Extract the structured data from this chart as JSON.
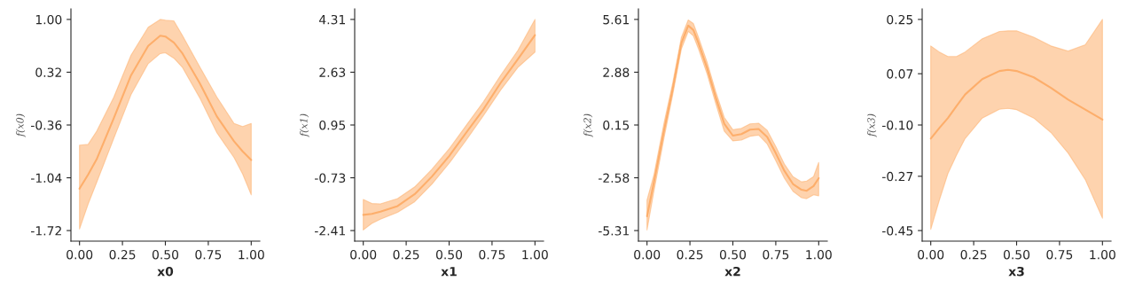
{
  "chart_data": [
    {
      "type": "line",
      "xlabel": "x0",
      "ylabel": "f(x0)",
      "grid": false,
      "x": [
        0,
        0.05,
        0.1,
        0.2,
        0.3,
        0.4,
        0.47,
        0.5,
        0.55,
        0.6,
        0.7,
        0.8,
        0.9,
        0.95,
        1.0
      ],
      "series": [
        {
          "color": "#fdae6b",
          "values": [
            -1.18,
            -1.0,
            -0.8,
            -0.27,
            0.28,
            0.66,
            0.79,
            0.78,
            0.7,
            0.56,
            0.18,
            -0.25,
            -0.57,
            -0.7,
            -0.81
          ],
          "lower": [
            -1.7,
            -1.38,
            -1.1,
            -0.53,
            0.03,
            0.43,
            0.56,
            0.57,
            0.5,
            0.38,
            -0.01,
            -0.46,
            -0.78,
            -0.99,
            -1.26
          ],
          "upper": [
            -0.62,
            -0.61,
            -0.44,
            0.0,
            0.54,
            0.9,
            1.0,
            0.99,
            0.98,
            0.79,
            0.39,
            0.0,
            -0.34,
            -0.38,
            -0.34
          ]
        }
      ],
      "xlim": [
        -0.05,
        1.05
      ],
      "ylim": [
        -1.856,
        1.136
      ],
      "xticks": [
        {
          "value": 0,
          "label": "0.00"
        },
        {
          "value": 0.25,
          "label": "0.25"
        },
        {
          "value": 0.5,
          "label": "0.50"
        },
        {
          "value": 0.75,
          "label": "0.75"
        },
        {
          "value": 1.0,
          "label": "1.00"
        }
      ],
      "yticks": [
        {
          "value": -1.72,
          "label": "-1.72"
        },
        {
          "value": -1.04,
          "label": "-1.04"
        },
        {
          "value": -0.36,
          "label": "-0.36"
        },
        {
          "value": 0.32,
          "label": "0.32"
        },
        {
          "value": 1.0,
          "label": "1.00"
        }
      ]
    },
    {
      "type": "line",
      "xlabel": "x1",
      "ylabel": "f(x1)",
      "grid": false,
      "x": [
        0,
        0.05,
        0.1,
        0.2,
        0.3,
        0.4,
        0.5,
        0.6,
        0.7,
        0.8,
        0.9,
        1.0
      ],
      "series": [
        {
          "color": "#fdae6b",
          "values": [
            -1.91,
            -1.88,
            -1.81,
            -1.63,
            -1.25,
            -0.69,
            -0.04,
            0.71,
            1.45,
            2.29,
            3.04,
            3.81
          ],
          "lower": [
            -2.39,
            -2.18,
            -2.05,
            -1.83,
            -1.49,
            -0.93,
            -0.27,
            0.47,
            1.25,
            2.06,
            2.78,
            3.27
          ],
          "upper": [
            -1.42,
            -1.55,
            -1.56,
            -1.39,
            -1.02,
            -0.46,
            0.19,
            0.94,
            1.69,
            2.53,
            3.32,
            4.31
          ]
        }
      ],
      "xlim": [
        -0.05,
        1.05
      ],
      "ylim": [
        -2.746,
        4.646
      ],
      "xticks": [
        {
          "value": 0,
          "label": "0.00"
        },
        {
          "value": 0.25,
          "label": "0.25"
        },
        {
          "value": 0.5,
          "label": "0.50"
        },
        {
          "value": 0.75,
          "label": "0.75"
        },
        {
          "value": 1.0,
          "label": "1.00"
        }
      ],
      "yticks": [
        {
          "value": -2.41,
          "label": "-2.41"
        },
        {
          "value": -0.73,
          "label": "-0.73"
        },
        {
          "value": 0.95,
          "label": "0.95"
        },
        {
          "value": 2.63,
          "label": "2.63"
        },
        {
          "value": 4.31,
          "label": "4.31"
        }
      ]
    },
    {
      "type": "line",
      "xlabel": "x2",
      "ylabel": "f(x2)",
      "grid": false,
      "x": [
        0,
        0.04,
        0.1,
        0.15,
        0.2,
        0.24,
        0.27,
        0.3,
        0.35,
        0.4,
        0.45,
        0.5,
        0.55,
        0.6,
        0.65,
        0.7,
        0.75,
        0.8,
        0.85,
        0.9,
        0.93,
        0.97,
        1.0
      ],
      "series": [
        {
          "color": "#fdae6b",
          "values": [
            -4.57,
            -2.82,
            -0.09,
            2.03,
            4.38,
            5.29,
            5.06,
            4.38,
            3.09,
            1.58,
            0.21,
            -0.4,
            -0.32,
            -0.09,
            -0.06,
            -0.47,
            -1.31,
            -2.22,
            -2.9,
            -3.2,
            -3.25,
            -3.01,
            -2.6
          ],
          "lower": [
            -5.28,
            -3.28,
            -0.47,
            1.73,
            4.08,
            4.99,
            4.76,
            4.08,
            2.79,
            1.27,
            -0.17,
            -0.67,
            -0.63,
            -0.43,
            -0.37,
            -0.83,
            -1.69,
            -2.6,
            -3.28,
            -3.61,
            -3.66,
            -3.46,
            -3.51
          ],
          "upper": [
            -3.73,
            -2.44,
            0.29,
            2.33,
            4.68,
            5.58,
            5.4,
            4.68,
            3.4,
            1.88,
            0.54,
            -0.09,
            -0.02,
            0.21,
            0.24,
            -0.12,
            -0.96,
            -1.87,
            -2.52,
            -2.79,
            -2.75,
            -2.52,
            -1.79
          ]
        }
      ],
      "xlim": [
        -0.05,
        1.05
      ],
      "ylim": [
        -5.856,
        6.156
      ],
      "xticks": [
        {
          "value": 0,
          "label": "0.00"
        },
        {
          "value": 0.25,
          "label": "0.25"
        },
        {
          "value": 0.5,
          "label": "0.50"
        },
        {
          "value": 0.75,
          "label": "0.75"
        },
        {
          "value": 1.0,
          "label": "1.00"
        }
      ],
      "yticks": [
        {
          "value": -5.31,
          "label": "-5.31"
        },
        {
          "value": -2.58,
          "label": "-2.58"
        },
        {
          "value": 0.15,
          "label": "0.15"
        },
        {
          "value": 2.88,
          "label": "2.88"
        },
        {
          "value": 5.61,
          "label": "5.61"
        }
      ]
    },
    {
      "type": "line",
      "xlabel": "x3",
      "ylabel": "f(x3)",
      "grid": false,
      "x": [
        0,
        0.05,
        0.1,
        0.15,
        0.2,
        0.3,
        0.4,
        0.45,
        0.5,
        0.6,
        0.7,
        0.8,
        0.9,
        1.0
      ],
      "series": [
        {
          "color": "#fdae6b",
          "values": [
            -0.145,
            -0.11,
            -0.077,
            -0.037,
            0.001,
            0.052,
            0.079,
            0.083,
            0.079,
            0.058,
            0.023,
            -0.016,
            -0.049,
            -0.082
          ],
          "lower": [
            -0.446,
            -0.349,
            -0.261,
            -0.2,
            -0.145,
            -0.077,
            -0.048,
            -0.045,
            -0.049,
            -0.077,
            -0.125,
            -0.193,
            -0.281,
            -0.409
          ],
          "upper": [
            0.162,
            0.142,
            0.127,
            0.127,
            0.142,
            0.186,
            0.21,
            0.212,
            0.212,
            0.191,
            0.162,
            0.145,
            0.166,
            0.25
          ]
        }
      ],
      "xlim": [
        -0.05,
        1.05
      ],
      "ylim": [
        -0.485,
        0.285
      ],
      "xticks": [
        {
          "value": 0,
          "label": "0.00"
        },
        {
          "value": 0.25,
          "label": "0.25"
        },
        {
          "value": 0.5,
          "label": "0.50"
        },
        {
          "value": 0.75,
          "label": "0.75"
        },
        {
          "value": 1.0,
          "label": "1.00"
        }
      ],
      "yticks": [
        {
          "value": -0.45,
          "label": "-0.45"
        },
        {
          "value": -0.27,
          "label": "-0.27"
        },
        {
          "value": -0.1,
          "label": "-0.10"
        },
        {
          "value": 0.07,
          "label": "0.07"
        },
        {
          "value": 0.25,
          "label": "0.25"
        }
      ]
    }
  ]
}
